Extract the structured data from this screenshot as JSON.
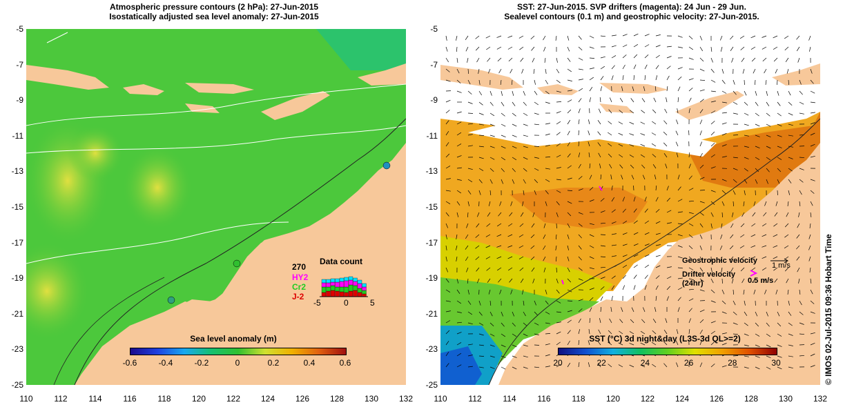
{
  "left": {
    "title_line1": "Atmospheric pressure contours (2 hPa): 27-Jun-2015",
    "title_line2": "Isostatically adjusted sea level anomaly: 27-Jun-2015",
    "colorbar": {
      "label": "Sea level anomaly (m)",
      "ticks": [
        "-0.6",
        "-0.4",
        "-0.2",
        "0",
        "0.2",
        "0.4",
        "0.6"
      ],
      "range": [
        -0.6,
        0.6
      ]
    },
    "data_count": {
      "title": "Data count",
      "number": "270",
      "satellites": [
        "HY2",
        "Cr2",
        "J-2"
      ],
      "satellite_colors": [
        "#ff00ff",
        "#22cc22",
        "#dd0000"
      ],
      "axis_ticks": [
        "-5",
        "0",
        "5"
      ]
    }
  },
  "right": {
    "title_line1": "SST: 27-Jun-2015. SVP drifters (magenta): 24 Jun - 29 Jun.",
    "title_line2": "Sealevel contours (0.1 m) and geostrophic velocity: 27-Jun-2015.",
    "legend": {
      "geo_label": "Geostrophic velocity",
      "geo_unit": "1 m/s",
      "drifter_label": "Drifter velocity",
      "drifter_sub": "(24hr)",
      "drifter_unit": "0.5 m/s"
    },
    "colorbar": {
      "label": "SST (°C) 3d night&day (L3S-3d QL>=2)",
      "ticks": [
        "20",
        "22",
        "24",
        "26",
        "28",
        "30"
      ],
      "range": [
        20,
        30
      ]
    },
    "credit": "© IMOS 02-Jul-2015 09:36 Hobart Time"
  },
  "axes": {
    "y_ticks": [
      "-5",
      "-7",
      "-9",
      "-11",
      "-13",
      "-15",
      "-17",
      "-19",
      "-21",
      "-23",
      "-25"
    ],
    "x_ticks": [
      "110",
      "112",
      "114",
      "116",
      "118",
      "120",
      "122",
      "124",
      "126",
      "128",
      "130",
      "132"
    ],
    "lat_range": [
      -25,
      -5
    ],
    "lon_range": [
      110,
      132
    ]
  },
  "colors": {
    "land": "#f7c89a",
    "sla_colors": [
      "#1a0a8c",
      "#1e40e0",
      "#18a8f0",
      "#16c070",
      "#30c030",
      "#d0e030",
      "#f0b000",
      "#e06010",
      "#a01010"
    ],
    "sst_colors": [
      "#101080",
      "#1050d0",
      "#10b0e0",
      "#10c060",
      "#60d020",
      "#e0e000",
      "#f0a000",
      "#e05000",
      "#900000"
    ]
  }
}
